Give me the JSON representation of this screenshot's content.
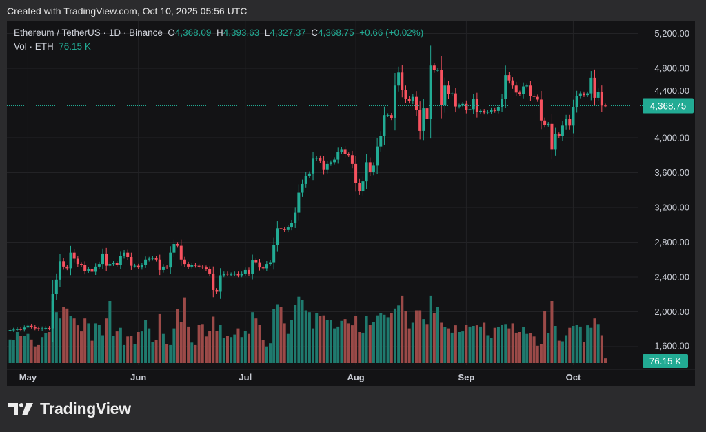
{
  "header": {
    "created": "Created with TradingView.com, Oct 10, 2025 05:56 UTC"
  },
  "legend": {
    "symbol": "Ethereum / TetherUS · 1D · Binance",
    "o_label": "O",
    "open": "4,368.09",
    "h_label": "H",
    "high": "4,393.63",
    "l_label": "L",
    "low": "4,327.37",
    "c_label": "C",
    "close": "4,368.75",
    "change": "+0.66 (+0.02%)",
    "vol_label": "Vol · ETH",
    "vol_value": "76.15 K"
  },
  "price_label": "4,368.75",
  "volume_label": "76.15 K",
  "logo": {
    "text": "TradingView"
  },
  "colors": {
    "up": "#22ab94",
    "down": "#f7525f",
    "up_volume": "#1f7a6e",
    "down_volume": "#9b4a48",
    "background": "#131315"
  },
  "chart_data": {
    "type": "candlestick",
    "interval": "1D",
    "start_date": "2025-04-26",
    "end_date": "2025-10-10",
    "y_ticks": [
      "5,200.00",
      "4,800.00",
      "4,400.00",
      "4,000.00",
      "3,600.00",
      "3,200.00",
      "2,800.00",
      "2,400.00",
      "2,000.00",
      "1,600.00"
    ],
    "y_tick_values": [
      5200,
      4800,
      4400,
      4000,
      3600,
      3200,
      2800,
      2400,
      2000,
      1600
    ],
    "x_ticks": [
      "May",
      "Jun",
      "Jul",
      "Aug",
      "Sep",
      "Oct"
    ],
    "x_tick_day_index": [
      5,
      36,
      66,
      97,
      128,
      158
    ],
    "last_price": 4368.75,
    "close": [
      1790,
      1795,
      1800,
      1795,
      1820,
      1840,
      1830,
      1810,
      1800,
      1810,
      1815,
      1810,
      2210,
      2370,
      2580,
      2520,
      2500,
      2680,
      2610,
      2550,
      2540,
      2470,
      2490,
      2460,
      2520,
      2550,
      2670,
      2530,
      2550,
      2560,
      2540,
      2640,
      2680,
      2630,
      2530,
      2530,
      2510,
      2540,
      2600,
      2610,
      2620,
      2600,
      2480,
      2520,
      2510,
      2680,
      2780,
      2760,
      2600,
      2550,
      2520,
      2540,
      2530,
      2520,
      2510,
      2490,
      2440,
      2250,
      2230,
      2420,
      2440,
      2430,
      2430,
      2440,
      2420,
      2440,
      2480,
      2440,
      2590,
      2570,
      2510,
      2500,
      2550,
      2570,
      2770,
      2960,
      2950,
      2940,
      2970,
      3020,
      3140,
      3370,
      3470,
      3560,
      3590,
      3760,
      3770,
      3740,
      3630,
      3700,
      3720,
      3750,
      3840,
      3870,
      3810,
      3800,
      3700,
      3480,
      3390,
      3500,
      3720,
      3610,
      3680,
      3900,
      4020,
      4260,
      4260,
      4230,
      4600,
      4750,
      4550,
      4450,
      4420,
      4470,
      4320,
      4080,
      4340,
      4220,
      4830,
      4780,
      4780,
      4380,
      4600,
      4500,
      4510,
      4360,
      4370,
      4390,
      4320,
      4330,
      4450,
      4300,
      4310,
      4290,
      4300,
      4320,
      4310,
      4350,
      4450,
      4720,
      4660,
      4600,
      4520,
      4500,
      4590,
      4600,
      4480,
      4470,
      4440,
      4200,
      4150,
      4160,
      3870,
      4040,
      4020,
      4140,
      4220,
      4140,
      4350,
      4480,
      4510,
      4490,
      4510,
      4690,
      4460,
      4530,
      4370,
      4368.75
    ],
    "volume_k": [
      380,
      370,
      500,
      440,
      440,
      470,
      380,
      270,
      290,
      420,
      480,
      500,
      1000,
      820,
      720,
      910,
      880,
      760,
      720,
      610,
      510,
      720,
      640,
      360,
      640,
      620,
      450,
      720,
      1000,
      440,
      510,
      570,
      290,
      430,
      440,
      300,
      500,
      510,
      700,
      560,
      340,
      370,
      790,
      470,
      310,
      290,
      560,
      870,
      660,
      1060,
      590,
      330,
      290,
      620,
      630,
      430,
      520,
      750,
      520,
      620,
      410,
      440,
      420,
      460,
      560,
      420,
      520,
      470,
      820,
      720,
      620,
      370,
      270,
      320,
      870,
      950,
      910,
      640,
      470,
      690,
      940,
      1070,
      1020,
      850,
      820,
      560,
      800,
      760,
      770,
      700,
      700,
      560,
      590,
      680,
      710,
      640,
      610,
      760,
      500,
      490,
      760,
      620,
      660,
      770,
      800,
      780,
      740,
      810,
      880,
      930,
      1090,
      840,
      560,
      650,
      850,
      850,
      710,
      630,
      1090,
      800,
      900,
      650,
      580,
      560,
      490,
      610,
      500,
      510,
      620,
      590,
      600,
      610,
      590,
      650,
      450,
      410,
      570,
      580,
      620,
      630,
      560,
      640,
      490,
      500,
      580,
      470,
      480,
      430,
      280,
      310,
      840,
      480,
      1000,
      600,
      360,
      350,
      450,
      570,
      600,
      620,
      590,
      340,
      610,
      570,
      720,
      630,
      450,
      76.15
    ]
  }
}
